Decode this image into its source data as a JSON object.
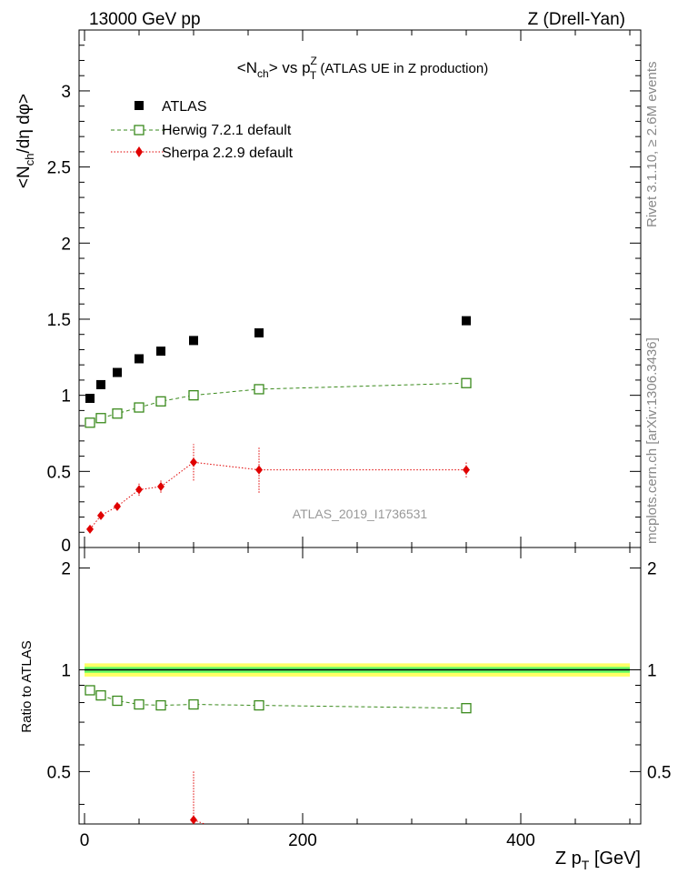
{
  "header": {
    "left": "13000 GeV pp",
    "right": "Z (Drell-Yan)"
  },
  "side": {
    "rivet": "Rivet 3.1.10, ≥ 2.6M events",
    "mcplots": "mcplots.cern.ch [arXiv:1306.3436]"
  },
  "watermark": "ATLAS_2019_I1736531",
  "chart_data": {
    "type": "scatter",
    "title_main": "<N",
    "title_sub": "ch",
    "title_rest": "> vs p",
    "title_sup": "Z",
    "title_sub2": "T",
    "title_tail": " (ATLAS UE in Z production)",
    "ylabel_top": "<N",
    "ylabel_top_sub": "ch",
    "ylabel_top_rest": "/dη dφ>",
    "ylabel_bottom": "Ratio to ATLAS",
    "xlabel_main": "Z p",
    "xlabel_sub": "T",
    "xlabel_rest": " [GeV]",
    "xlim": [
      -5,
      510
    ],
    "ylim_top": [
      0,
      3.4
    ],
    "ylim_bottom": [
      0.35,
      2.3
    ],
    "x_ticks": [
      0,
      200,
      400
    ],
    "x_tick_labels": [
      "0",
      "200",
      "400"
    ],
    "y_ticks_top": [
      0.5,
      1,
      1.5,
      2,
      2.5,
      3
    ],
    "y_tick_labels_top": [
      "0.5",
      "1",
      "1.5",
      "2",
      "2.5",
      "3"
    ],
    "y_zero_label": "0",
    "y_ticks_bottom": [
      0.5,
      1,
      2
    ],
    "y_tick_labels_bottom": [
      "0.5",
      "1",
      "2"
    ],
    "series": [
      {
        "name": "ATLAS",
        "color": "#000000",
        "marker": "filled-square",
        "x": [
          5,
          15,
          30,
          50,
          70,
          100,
          160,
          350
        ],
        "y": [
          0.98,
          1.07,
          1.15,
          1.24,
          1.29,
          1.36,
          1.41,
          1.49
        ],
        "ratio": [
          1,
          1,
          1,
          1,
          1,
          1,
          1,
          1
        ]
      },
      {
        "name": "Herwig 7.2.1 default",
        "color": "#3a8a1c",
        "marker": "open-square",
        "line": "dashed",
        "x": [
          5,
          15,
          30,
          50,
          70,
          100,
          160,
          350
        ],
        "y": [
          0.82,
          0.85,
          0.88,
          0.92,
          0.96,
          1.0,
          1.04,
          1.08
        ],
        "ratio": [
          0.87,
          0.84,
          0.81,
          0.79,
          0.785,
          0.79,
          0.785,
          0.77
        ]
      },
      {
        "name": "Sherpa 2.2.9 default",
        "color": "#e00000",
        "marker": "filled-diamond",
        "line": "dotted",
        "x": [
          5,
          15,
          30,
          50,
          70,
          100,
          160,
          350
        ],
        "y": [
          0.12,
          0.21,
          0.27,
          0.38,
          0.4,
          0.56,
          0.51,
          0.51
        ],
        "yerr": [
          0.01,
          0.02,
          0.02,
          0.04,
          0.04,
          0.12,
          0.15,
          0.05
        ],
        "ratio": [
          null,
          null,
          null,
          null,
          null,
          0.36,
          null,
          null
        ],
        "ratio_err": [
          null,
          null,
          null,
          null,
          null,
          0.14,
          null,
          null
        ]
      }
    ],
    "band_colors": [
      "#ffff66",
      "#66ff66"
    ]
  }
}
